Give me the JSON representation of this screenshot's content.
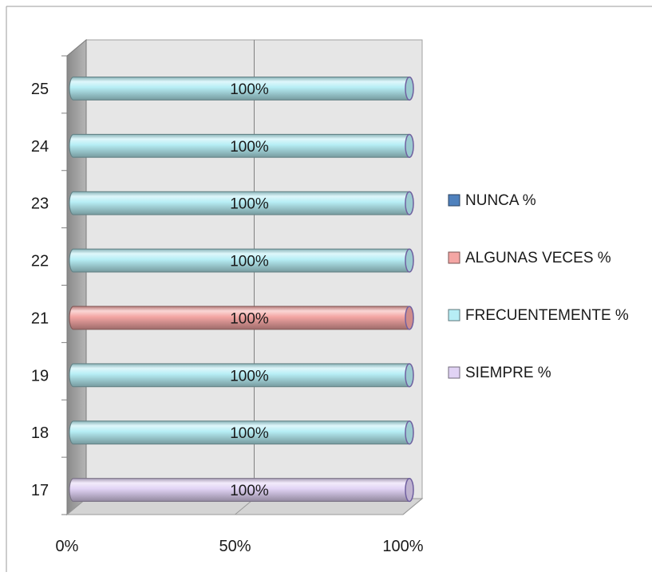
{
  "chart_data": {
    "type": "bar",
    "orientation": "horizontal",
    "stacked": "100%",
    "style": "3d-cylinder",
    "categories": [
      "17",
      "18",
      "19",
      "21",
      "22",
      "23",
      "24",
      "25"
    ],
    "series": [
      {
        "name": "NUNCA %",
        "color": "#4f81bd",
        "values": [
          0,
          0,
          0,
          0,
          0,
          0,
          0,
          0
        ]
      },
      {
        "name": "ALGUNAS VECES %",
        "color": "#f4a6a4",
        "values": [
          0,
          0,
          0,
          100,
          0,
          0,
          0,
          0
        ]
      },
      {
        "name": "FRECUENTEMENTE %",
        "color": "#b7eef5",
        "values": [
          0,
          100,
          100,
          0,
          100,
          100,
          100,
          100
        ]
      },
      {
        "name": "SIEMPRE %",
        "color": "#e1d3f5",
        "values": [
          100,
          0,
          0,
          0,
          0,
          0,
          0,
          0
        ]
      }
    ],
    "data_labels": [
      "100%",
      "100%",
      "100%",
      "100%",
      "100%",
      "100%",
      "100%",
      "100%"
    ],
    "x_ticks": [
      "0%",
      "50%",
      "100%"
    ],
    "xlim": [
      0,
      100
    ],
    "grid": true,
    "legend_position": "right",
    "title": "",
    "xlabel": "",
    "ylabel": ""
  }
}
